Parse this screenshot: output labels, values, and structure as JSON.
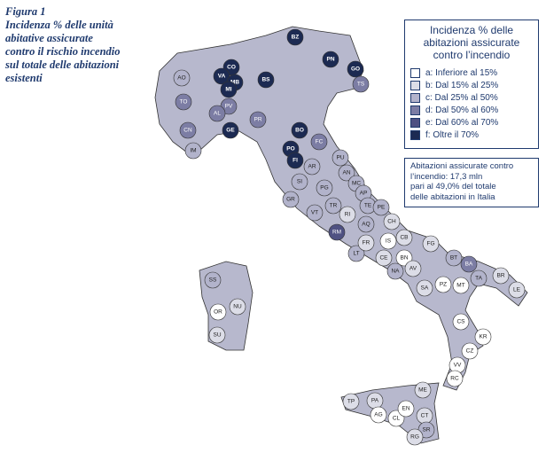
{
  "caption": {
    "label": "Figura 1",
    "lines": [
      "Incidenza % delle unità",
      "abitative assicurate",
      "contro il rischio incendio",
      "sul totale delle abitazioni",
      "esistenti"
    ]
  },
  "legend": {
    "title": [
      "Incidenza % delle",
      "abitazioni assicurate",
      "contro l’incendio"
    ],
    "classes": [
      {
        "key": "a",
        "label": "a: Inferiore al 15%",
        "color": "#ffffff"
      },
      {
        "key": "b",
        "label": "b: Dal 15% al 25%",
        "color": "#dcdde7"
      },
      {
        "key": "c",
        "label": "c: Dal 25% al 50%",
        "color": "#b2b3cb"
      },
      {
        "key": "d",
        "label": "d: Dal 50% al 60%",
        "color": "#7c7da4"
      },
      {
        "key": "e",
        "label": "e: Dal 60% al 70%",
        "color": "#4f5182"
      },
      {
        "key": "f",
        "label": "f: Oltre il 70%",
        "color": "#1c2a52"
      }
    ]
  },
  "note": [
    "Abitazioni assicurate contro",
    "l’incendio: 17,3 mln",
    "pari al 49,0% del totale",
    "delle abitazioni in Italia"
  ],
  "provinces": [
    {
      "code": "BZ",
      "class": "f"
    },
    {
      "code": "PN",
      "class": "f"
    },
    {
      "code": "GO",
      "class": "f"
    },
    {
      "code": "TS",
      "class": "d"
    },
    {
      "code": "CO",
      "class": "f"
    },
    {
      "code": "VA",
      "class": "f"
    },
    {
      "code": "MB",
      "class": "f"
    },
    {
      "code": "MI",
      "class": "f"
    },
    {
      "code": "BS",
      "class": "f"
    },
    {
      "code": "AO",
      "class": "c"
    },
    {
      "code": "TO",
      "class": "d"
    },
    {
      "code": "CN",
      "class": "d"
    },
    {
      "code": "IM",
      "class": "c"
    },
    {
      "code": "GE",
      "class": "f"
    },
    {
      "code": "BO",
      "class": "f"
    },
    {
      "code": "PO",
      "class": "f"
    },
    {
      "code": "FI",
      "class": "f"
    },
    {
      "code": "PV",
      "class": "d"
    },
    {
      "code": "AL",
      "class": "d"
    },
    {
      "code": "PR",
      "class": "d"
    },
    {
      "code": "FC",
      "class": "d"
    },
    {
      "code": "AR",
      "class": "c"
    },
    {
      "code": "SI",
      "class": "c"
    },
    {
      "code": "GR",
      "class": "c"
    },
    {
      "code": "PG",
      "class": "c"
    },
    {
      "code": "PU",
      "class": "c"
    },
    {
      "code": "AN",
      "class": "c"
    },
    {
      "code": "MC",
      "class": "c"
    },
    {
      "code": "AP",
      "class": "c"
    },
    {
      "code": "TE",
      "class": "c"
    },
    {
      "code": "TR",
      "class": "c"
    },
    {
      "code": "VT",
      "class": "c"
    },
    {
      "code": "RI",
      "class": "b"
    },
    {
      "code": "AQ",
      "class": "c"
    },
    {
      "code": "PE",
      "class": "c"
    },
    {
      "code": "CH",
      "class": "b"
    },
    {
      "code": "RM",
      "class": "e"
    },
    {
      "code": "LT",
      "class": "c"
    },
    {
      "code": "FR",
      "class": "b"
    },
    {
      "code": "IS",
      "class": "a"
    },
    {
      "code": "CB",
      "class": "b"
    },
    {
      "code": "CE",
      "class": "b"
    },
    {
      "code": "BN",
      "class": "a"
    },
    {
      "code": "AV",
      "class": "b"
    },
    {
      "code": "NA",
      "class": "c"
    },
    {
      "code": "SA",
      "class": "b"
    },
    {
      "code": "FG",
      "class": "b"
    },
    {
      "code": "BT",
      "class": "c"
    },
    {
      "code": "BA",
      "class": "d"
    },
    {
      "code": "TA",
      "class": "c"
    },
    {
      "code": "BR",
      "class": "b"
    },
    {
      "code": "LE",
      "class": "b"
    },
    {
      "code": "MT",
      "class": "a"
    },
    {
      "code": "PZ",
      "class": "a"
    },
    {
      "code": "CS",
      "class": "a"
    },
    {
      "code": "KR",
      "class": "a"
    },
    {
      "code": "CZ",
      "class": "a"
    },
    {
      "code": "VV",
      "class": "a"
    },
    {
      "code": "RC",
      "class": "a"
    },
    {
      "code": "ME",
      "class": "b"
    },
    {
      "code": "PA",
      "class": "b"
    },
    {
      "code": "TP",
      "class": "b"
    },
    {
      "code": "AG",
      "class": "a"
    },
    {
      "code": "CL",
      "class": "a"
    },
    {
      "code": "EN",
      "class": "a"
    },
    {
      "code": "CT",
      "class": "b"
    },
    {
      "code": "SR",
      "class": "c"
    },
    {
      "code": "RG",
      "class": "b"
    },
    {
      "code": "SS",
      "class": "c"
    },
    {
      "code": "NU",
      "class": "b"
    },
    {
      "code": "OR",
      "class": "a"
    },
    {
      "code": "SU",
      "class": "b"
    }
  ]
}
